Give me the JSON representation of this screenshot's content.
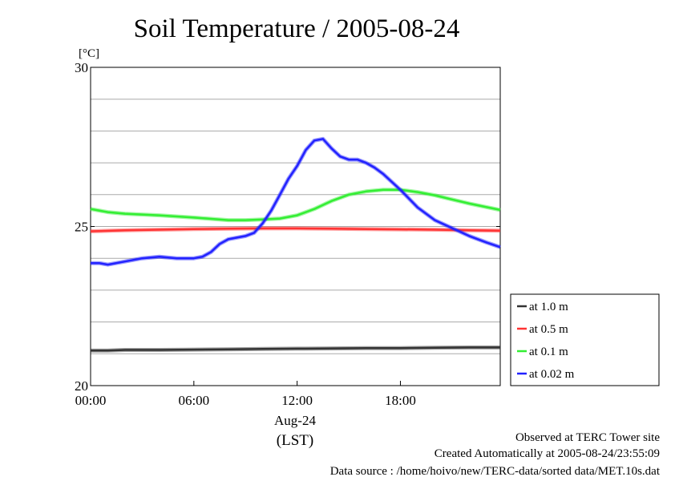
{
  "chart_data": {
    "type": "line",
    "title": "Soil Temperature / 2005-08-24",
    "y_unit": "[°C]",
    "ylim": [
      20,
      30
    ],
    "y_ticks": [
      20,
      25,
      30
    ],
    "y_minor_step": 1,
    "xlim": [
      0,
      23.8
    ],
    "x_ticks": [
      {
        "value": 0,
        "label": "00:00"
      },
      {
        "value": 6,
        "label": "06:00"
      },
      {
        "value": 12,
        "label": "12:00"
      },
      {
        "value": 18,
        "label": "18:00"
      }
    ],
    "x_date_label": "Aug-24",
    "x_zone_label": "(LST)",
    "grid": true,
    "legend_position": "right",
    "series": [
      {
        "name": "at 1.0 m",
        "color": "#333333",
        "x": [
          0,
          1,
          2,
          4,
          6,
          8,
          10,
          12,
          14,
          16,
          18,
          20,
          22,
          23.8
        ],
        "y": [
          21.1,
          21.1,
          21.12,
          21.12,
          21.13,
          21.14,
          21.15,
          21.16,
          21.17,
          21.18,
          21.18,
          21.19,
          21.2,
          21.2
        ]
      },
      {
        "name": "at 0.5 m",
        "color": "#ff3333",
        "x": [
          0,
          2,
          4,
          6,
          8,
          10,
          12,
          14,
          16,
          18,
          20,
          22,
          23.8
        ],
        "y": [
          24.85,
          24.88,
          24.9,
          24.92,
          24.93,
          24.94,
          24.94,
          24.93,
          24.92,
          24.91,
          24.9,
          24.88,
          24.87
        ]
      },
      {
        "name": "at 0.1 m",
        "color": "#33ee33",
        "x": [
          0,
          1,
          2,
          4,
          6,
          8,
          9,
          10,
          11,
          12,
          13,
          14,
          15,
          16,
          17,
          18,
          19,
          20,
          21,
          22,
          23.8
        ],
        "y": [
          25.55,
          25.45,
          25.4,
          25.35,
          25.28,
          25.2,
          25.2,
          25.22,
          25.25,
          25.35,
          25.55,
          25.8,
          26.0,
          26.1,
          26.15,
          26.15,
          26.08,
          25.98,
          25.85,
          25.72,
          25.52
        ]
      },
      {
        "name": "at 0.02 m",
        "color": "#2222ff",
        "x": [
          0,
          0.5,
          1,
          2,
          3,
          4,
          5,
          6,
          6.5,
          7,
          7.5,
          8,
          8.5,
          9,
          9.5,
          10,
          10.5,
          11,
          11.5,
          12,
          12.5,
          13,
          13.5,
          14,
          14.5,
          15,
          15.5,
          16,
          16.5,
          17,
          18,
          19,
          20,
          21,
          22,
          23,
          23.8
        ],
        "y": [
          23.85,
          23.85,
          23.8,
          23.9,
          24.0,
          24.05,
          24.0,
          24.0,
          24.05,
          24.2,
          24.45,
          24.6,
          24.65,
          24.7,
          24.8,
          25.1,
          25.5,
          26.0,
          26.5,
          26.9,
          27.4,
          27.7,
          27.75,
          27.45,
          27.2,
          27.1,
          27.1,
          27.0,
          26.85,
          26.65,
          26.15,
          25.6,
          25.2,
          24.95,
          24.7,
          24.5,
          24.35
        ]
      }
    ]
  },
  "footer": {
    "line1": "Observed at TERC Tower site",
    "line2": "Created Automatically at 2005-08-24/23:55:09",
    "line3": "Data source : /home/hoivo/new/TERC-data/sorted  data/MET.10s.dat"
  }
}
